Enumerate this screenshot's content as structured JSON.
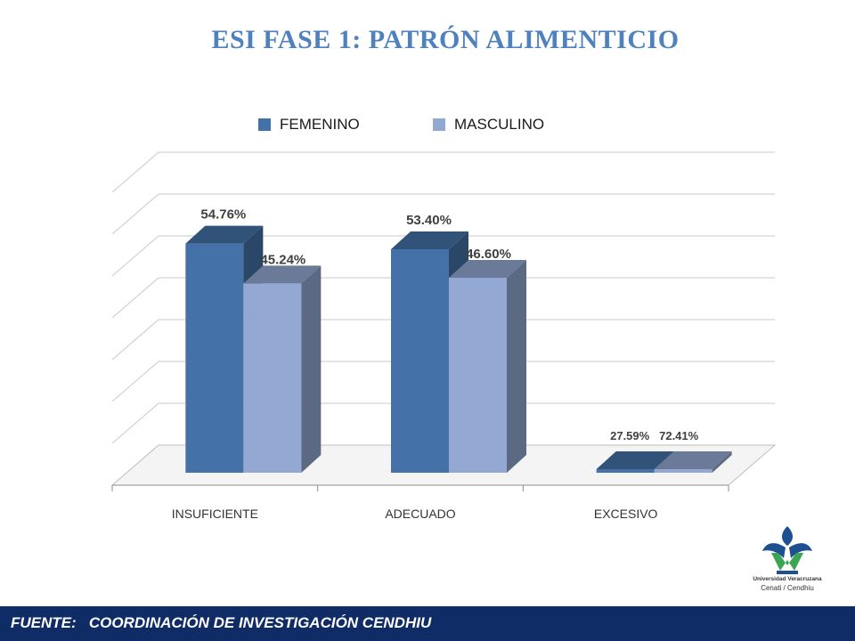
{
  "title": "ESI FASE 1: PATRÓN ALIMENTICIO",
  "footer": {
    "text": "FUENTE:   COORDINACIÓN DE INVESTIGACIÓN CENDHIU"
  },
  "logo": {
    "line1": "Universidad Veracruzana",
    "line2": "Cenati / Cendhiu",
    "icon": "uv-flame-logo-icon"
  },
  "colors": {
    "femenino": "#4472a8",
    "masculino": "#93a9d3",
    "grid": "#c8c8c8",
    "footer_bg": "#0f2c66",
    "title": "#4f81bd"
  },
  "legend": [
    {
      "label": "FEMENINO",
      "color": "#4472a8"
    },
    {
      "label": "MASCULINO",
      "color": "#93a9d3"
    }
  ],
  "chart_data": {
    "type": "bar",
    "categories": [
      "INSUFICIENTE",
      "ADECUADO",
      "EXCESIVO"
    ],
    "series": [
      {
        "name": "FEMENINO",
        "values": [
          54.76,
          53.4,
          27.59
        ],
        "labels": [
          "54.76%",
          "53.40%",
          "27.59%"
        ],
        "color": "#4472a8"
      },
      {
        "name": "MASCULINO",
        "values": [
          45.24,
          46.6,
          72.41
        ],
        "labels": [
          "45.24%",
          "46.60%",
          "72.41%"
        ],
        "color": "#93a9d3"
      }
    ],
    "title": "ESI FASE 1: PATRÓN ALIMENTICIO",
    "xlabel": "",
    "ylabel": "",
    "grid": true,
    "legend_position": "top"
  }
}
